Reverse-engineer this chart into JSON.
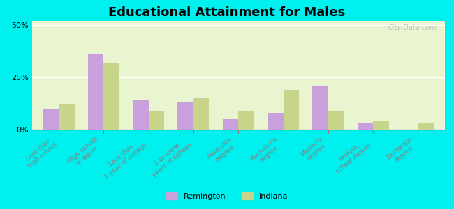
{
  "title": "Educational Attainment for Males",
  "categories": [
    "Less than\nhigh school",
    "High school\nor equiv.",
    "Less than\n1 year of college",
    "1 or more\nyears of college",
    "Associate\ndegree",
    "Bachelor's\ndegree",
    "Master's\ndegree",
    "Profess.\nschool degree",
    "Doctorate\ndegree"
  ],
  "remington": [
    10.0,
    36.0,
    14.0,
    13.0,
    5.0,
    8.0,
    21.0,
    3.0,
    0.0
  ],
  "indiana": [
    12.0,
    32.0,
    9.0,
    15.0,
    9.0,
    19.0,
    9.0,
    4.0,
    3.0
  ],
  "remington_color": "#c9a0dc",
  "indiana_color": "#c8d48a",
  "background_color": "#e8f5d0",
  "outer_background": "#00efef",
  "yticks": [
    0,
    25,
    50
  ],
  "ylim": [
    0,
    52
  ],
  "legend_remington": "Remington",
  "legend_indiana": "Indiana",
  "watermark": "City-Data.com"
}
